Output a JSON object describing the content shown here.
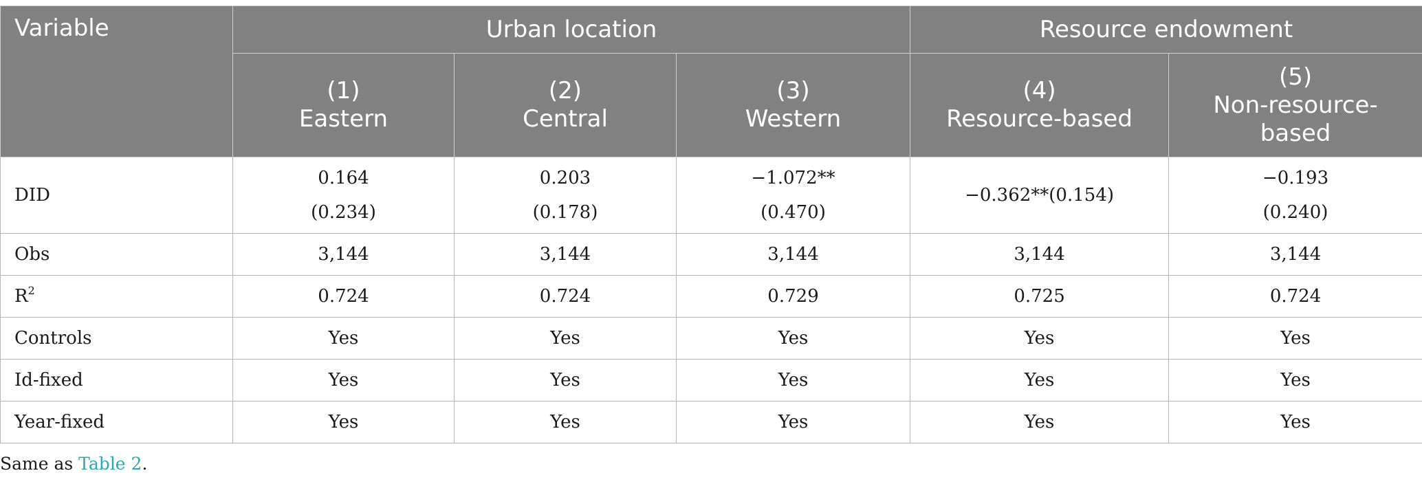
{
  "header": {
    "variable": "Variable",
    "groups": [
      "Urban location",
      "Resource endowment"
    ],
    "columns": [
      {
        "num": "(1)",
        "name": "Eastern"
      },
      {
        "num": "(2)",
        "name": "Central"
      },
      {
        "num": "(3)",
        "name": "Western"
      },
      {
        "num": "(4)",
        "name": "Resource-based"
      },
      {
        "num": "(5)",
        "name": "Non-resource-",
        "name2": "based"
      }
    ]
  },
  "rows": {
    "did": {
      "label": "DID",
      "c1": {
        "coef": "0.164",
        "se": "(0.234)"
      },
      "c2": {
        "coef": "0.203",
        "se": "(0.178)"
      },
      "c3": {
        "coef": "−1.072**",
        "se": "(0.470)"
      },
      "c4": "−0.362**(0.154)",
      "c5": {
        "coef": "−0.193",
        "se": "(0.240)"
      }
    },
    "obs": {
      "label": "Obs",
      "values": [
        "3,144",
        "3,144",
        "3,144",
        "3,144",
        "3,144"
      ]
    },
    "r2": {
      "label": "R",
      "sup": "2",
      "values": [
        "0.724",
        "0.724",
        "0.729",
        "0.725",
        "0.724"
      ]
    },
    "controls": {
      "label": "Controls",
      "values": [
        "Yes",
        "Yes",
        "Yes",
        "Yes",
        "Yes"
      ]
    },
    "idfixed": {
      "label": "Id-fixed",
      "values": [
        "Yes",
        "Yes",
        "Yes",
        "Yes",
        "Yes"
      ]
    },
    "yearfixed": {
      "label": "Year-fixed",
      "values": [
        "Yes",
        "Yes",
        "Yes",
        "Yes",
        "Yes"
      ]
    }
  },
  "note": {
    "prefix": "Same as ",
    "link": "Table 2",
    "suffix": "."
  }
}
